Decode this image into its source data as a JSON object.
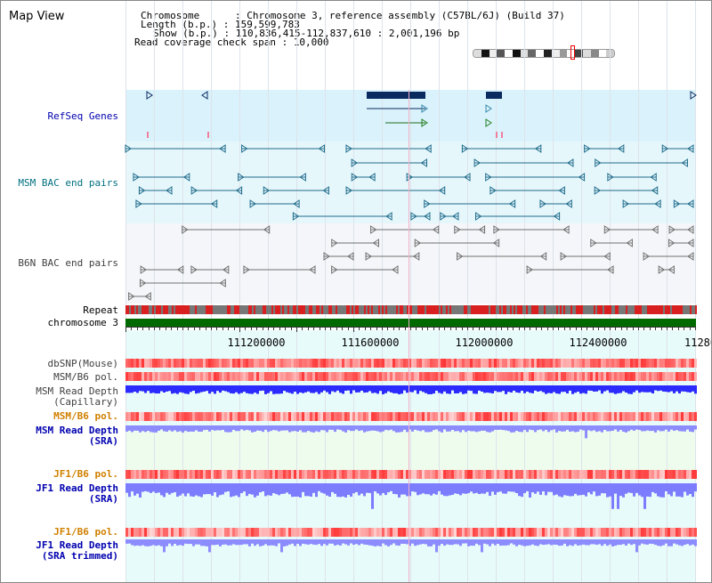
{
  "title": "Map View",
  "info": {
    "chromosome_label": "Chromosome      : ",
    "chromosome_value": "Chromosome 3, reference assembly (C57BL/6J) (Build 37)",
    "length_label": "Length (b.p.) : ",
    "length_value": "159,599,783",
    "show_label": "Show (b.p.) : ",
    "show_value": "110,836,415-112,837,610 : 2,001,196 bp",
    "coverage_label": "Read coverage check span : ",
    "coverage_value": "10,000"
  },
  "tracks": {
    "refseq": "RefSeq Genes",
    "msm_bac": "MSM BAC end pairs",
    "b6n_bac": "B6N BAC end pairs",
    "repeat": "Repeat",
    "chromosome": "chromosome 3",
    "dbsnp": "dbSNP(Mouse)",
    "msm_b6_pol_1": "MSM/B6 pol.",
    "msm_read_depth_cap": "MSM Read Depth\n(Capillary)",
    "msm_b6_pol_2": "MSM/B6 pol.",
    "msm_read_depth_sra": "MSM Read Depth\n(SRA)",
    "jf1_b6_pol_1": "JF1/B6 pol.",
    "jf1_read_depth_sra": "JF1 Read Depth\n(SRA)",
    "jf1_b6_pol_2": "JF1/B6 pol.",
    "jf1_read_depth_trim": "JF1 Read Depth\n(SRA trimmed)"
  },
  "ruler": {
    "labels": [
      "111200000",
      "111600000",
      "112000000",
      "112400000",
      "11280"
    ]
  },
  "colors": {
    "refseq_bg": "#daf2fb",
    "msm_bac_bg": "#e6f7fc",
    "b6n_bac_bg": "#f4f6f9",
    "msm_color": "#1e6b8a",
    "b6n_color": "#707070",
    "refseq_gene": "#0a2a60",
    "repeat_red": "#d82020",
    "repeat_gray": "#777777",
    "chromosome_green": "#006a00",
    "depth_blue": "#2b2bff",
    "depth_light": "#7c7cff",
    "label_blue": "#0000b0",
    "label_teal": "#007080",
    "label_gray": "#404040",
    "label_orange": "#d08000"
  }
}
